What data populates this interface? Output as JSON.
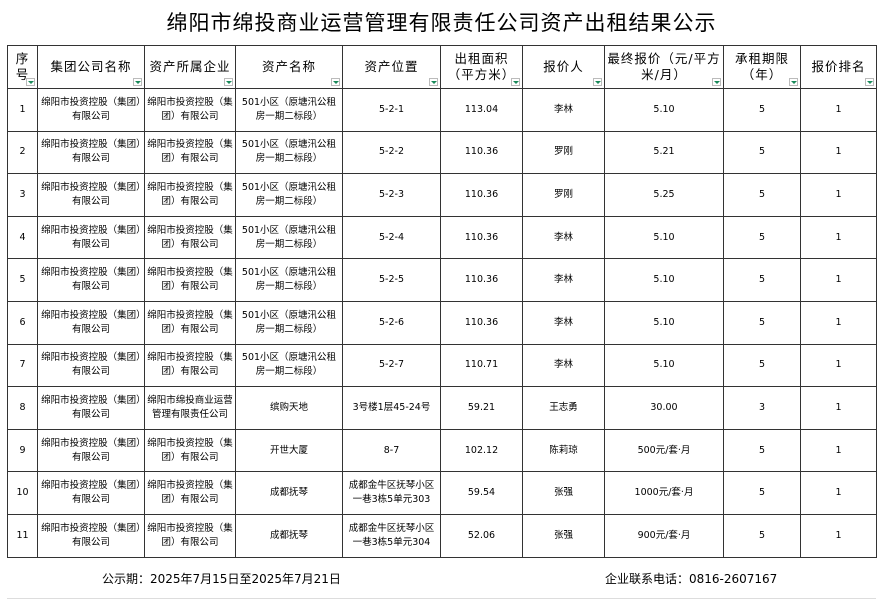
{
  "title": "绵阳市绵投商业运营管理有限责任公司资产出租结果公示",
  "headers": [
    "序号",
    "集团公司名称",
    "资产所属企业",
    "资产名称",
    "资产位置",
    "出租面积（平方米）",
    "报价人",
    "最终报价（元/平方米/月）",
    "承租期限（年）",
    "报价排名"
  ],
  "rows": [
    [
      "1",
      "绵阳市投资控股（集团）有限公司",
      "绵阳市投资控股（集团）有限公司",
      "501小区（原塘汛公租房一期二标段）",
      "5-2-1",
      "113.04",
      "李林",
      "5.10",
      "5",
      "1"
    ],
    [
      "2",
      "绵阳市投资控股（集团）有限公司",
      "绵阳市投资控股（集团）有限公司",
      "501小区（原塘汛公租房一期二标段）",
      "5-2-2",
      "110.36",
      "罗刚",
      "5.21",
      "5",
      "1"
    ],
    [
      "3",
      "绵阳市投资控股（集团）有限公司",
      "绵阳市投资控股（集团）有限公司",
      "501小区（原塘汛公租房一期二标段）",
      "5-2-3",
      "110.36",
      "罗刚",
      "5.25",
      "5",
      "1"
    ],
    [
      "4",
      "绵阳市投资控股（集团）有限公司",
      "绵阳市投资控股（集团）有限公司",
      "501小区（原塘汛公租房一期二标段）",
      "5-2-4",
      "110.36",
      "李林",
      "5.10",
      "5",
      "1"
    ],
    [
      "5",
      "绵阳市投资控股（集团）有限公司",
      "绵阳市投资控股（集团）有限公司",
      "501小区（原塘汛公租房一期二标段）",
      "5-2-5",
      "110.36",
      "李林",
      "5.10",
      "5",
      "1"
    ],
    [
      "6",
      "绵阳市投资控股（集团）有限公司",
      "绵阳市投资控股（集团）有限公司",
      "501小区（原塘汛公租房一期二标段）",
      "5-2-6",
      "110.36",
      "李林",
      "5.10",
      "5",
      "1"
    ],
    [
      "7",
      "绵阳市投资控股（集团）有限公司",
      "绵阳市投资控股（集团）有限公司",
      "501小区（原塘汛公租房一期二标段）",
      "5-2-7",
      "110.71",
      "李林",
      "5.10",
      "5",
      "1"
    ],
    [
      "8",
      "绵阳市投资控股（集团）有限公司",
      "绵阳市绵投商业运营管理有限责任公司",
      "缤购天地",
      "3号楼1层45-24号",
      "59.21",
      "王志勇",
      "30.00",
      "3",
      "1"
    ],
    [
      "9",
      "绵阳市投资控股（集团）有限公司",
      "绵阳市投资控股（集团）有限公司",
      "开世大厦",
      "8-7",
      "102.12",
      "陈莉琼",
      "500元/套·月",
      "5",
      "1"
    ],
    [
      "10",
      "绵阳市投资控股（集团）有限公司",
      "绵阳市投资控股（集团）有限公司",
      "成都抚琴",
      "成都金牛区抚琴小区一巷3栋5单元303",
      "59.54",
      "张强",
      "1000元/套·月",
      "5",
      "1"
    ],
    [
      "11",
      "绵阳市投资控股（集团）有限公司",
      "绵阳市投资控股（集团）有限公司",
      "成都抚琴",
      "成都金牛区抚琴小区一巷3栋5单元304",
      "52.06",
      "张强",
      "900元/套·月",
      "5",
      "1"
    ]
  ],
  "footer": {
    "period": "公示期：2025年7月15日至2025年7月21日",
    "contact": "企业联系电话：0816-2607167"
  },
  "colors": {
    "filter_arrow": "#1a8a5a",
    "border": "#333333"
  }
}
